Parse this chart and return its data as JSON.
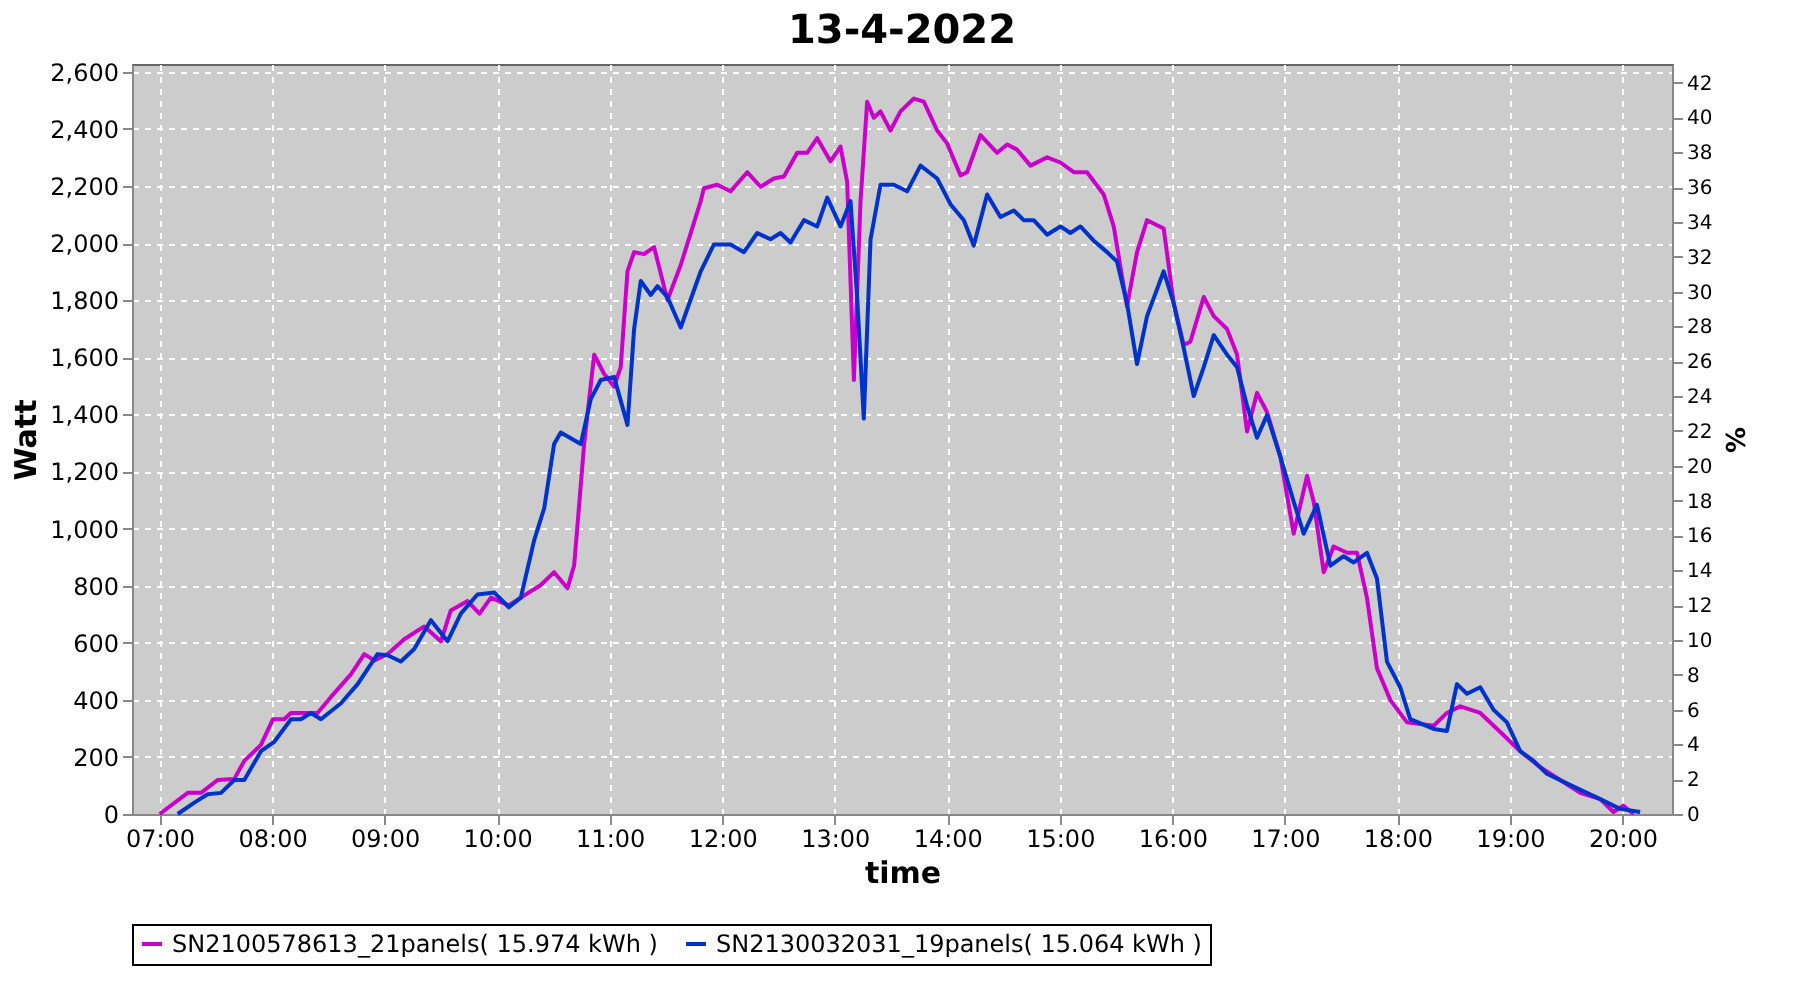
{
  "chart_data": {
    "type": "line",
    "title": "13-4-2022",
    "xlabel": "time",
    "ylabel": "Watt",
    "y2label": "%",
    "xlim": [
      6.755,
      20.44
    ],
    "xticks": [
      {
        "value": 7,
        "label": "07:00"
      },
      {
        "value": 8,
        "label": "08:00"
      },
      {
        "value": 9,
        "label": "09:00"
      },
      {
        "value": 10,
        "label": "10:00"
      },
      {
        "value": 11,
        "label": "11:00"
      },
      {
        "value": 12,
        "label": "12:00"
      },
      {
        "value": 13,
        "label": "13:00"
      },
      {
        "value": 14,
        "label": "14:00"
      },
      {
        "value": 15,
        "label": "15:00"
      },
      {
        "value": 16,
        "label": "16:00"
      },
      {
        "value": 17,
        "label": "17:00"
      },
      {
        "value": 18,
        "label": "18:00"
      },
      {
        "value": 19,
        "label": "19:00"
      },
      {
        "value": 20,
        "label": "20:00"
      }
    ],
    "ylim": [
      0,
      2627
    ],
    "yticks": [
      0,
      200,
      400,
      600,
      800,
      {
        "value": 1000,
        "label": "1,000"
      },
      {
        "value": 1200,
        "label": "1,200"
      },
      {
        "value": 1400,
        "label": "1,400"
      },
      {
        "value": 1600,
        "label": "1,600"
      },
      {
        "value": 1800,
        "label": "1,800"
      },
      {
        "value": 2000,
        "label": "2,000"
      },
      {
        "value": 2200,
        "label": "2,200"
      },
      {
        "value": 2400,
        "label": "2,400"
      },
      {
        "value": 2600,
        "label": "2,600"
      }
    ],
    "y2lim": [
      0,
      43.07
    ],
    "y2ticks": [
      0,
      2,
      4,
      6,
      8,
      10,
      12,
      14,
      16,
      18,
      20,
      22,
      24,
      26,
      28,
      30,
      32,
      34,
      36,
      38,
      40,
      42
    ],
    "grid": true,
    "legend": "bottom",
    "marker": "none",
    "line_style": "solid",
    "series": [
      {
        "name": "SN2100578613_21panels( 15.974 kWh )",
        "color": "#cc00cc",
        "x": [
          7.001,
          7.25,
          7.368,
          7.516,
          7.664,
          7.753,
          7.901,
          8.008,
          8.108,
          8.167,
          8.316,
          8.404,
          8.523,
          8.7,
          8.819,
          8.908,
          9.026,
          9.174,
          9.352,
          9.5,
          9.588,
          9.737,
          9.843,
          9.944,
          10.104,
          10.21,
          10.388,
          10.506,
          10.625,
          10.684,
          10.773,
          10.862,
          10.95,
          11.039,
          11.098,
          11.158,
          11.217,
          11.306,
          11.394,
          11.513,
          11.631,
          11.809,
          11.837,
          11.956,
          12.074,
          12.222,
          12.341,
          12.459,
          12.548,
          12.666,
          12.755,
          12.844,
          12.962,
          13.051,
          13.11,
          13.17,
          13.229,
          13.288,
          13.347,
          13.406,
          13.495,
          13.584,
          13.703,
          13.791,
          13.91,
          13.998,
          14.117,
          14.176,
          14.295,
          14.443,
          14.532,
          14.62,
          14.739,
          14.887,
          15.005,
          15.124,
          15.242,
          15.39,
          15.479,
          15.597,
          15.686,
          15.775,
          15.923,
          16.012,
          16.101,
          16.16,
          16.279,
          16.368,
          16.486,
          16.575,
          16.664,
          16.752,
          16.841,
          16.96,
          17.078,
          17.197,
          17.256,
          17.345,
          17.433,
          17.552,
          17.641,
          17.729,
          17.818,
          17.937,
          18.085,
          18.322,
          18.44,
          18.558,
          18.736,
          18.914,
          19.091,
          19.269,
          19.447,
          19.624,
          19.802,
          19.92,
          20.009,
          20.098
        ],
        "values": [
          0,
          74,
          74,
          119,
          123,
          186,
          242,
          332,
          332,
          354,
          354,
          354,
          410,
          489,
          560,
          538,
          560,
          612,
          657,
          605,
          713,
          746,
          702,
          758,
          731,
          758,
          802,
          847,
          791,
          870,
          1296,
          1609,
          1542,
          1497,
          1565,
          1901,
          1968,
          1961,
          1986,
          1800,
          1923,
          2147,
          2192,
          2204,
          2181,
          2248,
          2197,
          2226,
          2233,
          2316,
          2316,
          2367,
          2286,
          2338,
          2215,
          1520,
          2147,
          2495,
          2439,
          2461,
          2394,
          2461,
          2506,
          2495,
          2394,
          2349,
          2237,
          2248,
          2378,
          2316,
          2345,
          2327,
          2271,
          2300,
          2282,
          2248,
          2248,
          2170,
          2058,
          1778,
          1968,
          2080,
          2051,
          1789,
          1643,
          1654,
          1811,
          1744,
          1699,
          1609,
          1340,
          1475,
          1408,
          1251,
          982,
          1184,
          1094,
          847,
          937,
          915,
          915,
          758,
          511,
          399,
          321,
          309,
          354,
          377,
          354,
          287,
          220,
          164,
          119,
          74,
          52,
          7,
          29,
          0
        ]
      },
      {
        "name": "SN2130032031_19panels( 15.064 kWh )",
        "color": "#0033cc",
        "x": [
          7.161,
          7.309,
          7.427,
          7.546,
          7.664,
          7.753,
          7.901,
          8.019,
          8.168,
          8.256,
          8.345,
          8.434,
          8.612,
          8.76,
          8.937,
          9.026,
          9.144,
          9.263,
          9.411,
          9.559,
          9.677,
          9.825,
          9.973,
          10.104,
          10.21,
          10.329,
          10.418,
          10.506,
          10.565,
          10.743,
          10.832,
          10.921,
          11.039,
          11.158,
          11.217,
          11.276,
          11.365,
          11.424,
          11.513,
          11.631,
          11.809,
          11.926,
          12.074,
          12.193,
          12.311,
          12.429,
          12.518,
          12.607,
          12.726,
          12.844,
          12.933,
          13.051,
          13.14,
          13.199,
          13.258,
          13.318,
          13.406,
          13.525,
          13.643,
          13.762,
          13.91,
          14.028,
          14.147,
          14.235,
          14.354,
          14.472,
          14.591,
          14.679,
          14.768,
          14.887,
          15.005,
          15.094,
          15.183,
          15.301,
          15.42,
          15.508,
          15.597,
          15.686,
          15.775,
          15.923,
          16.012,
          16.101,
          16.19,
          16.279,
          16.368,
          16.486,
          16.575,
          16.664,
          16.752,
          16.841,
          16.96,
          17.078,
          17.167,
          17.285,
          17.404,
          17.522,
          17.611,
          17.729,
          17.818,
          17.907,
          18.025,
          18.114,
          18.322,
          18.44,
          18.529,
          18.618,
          18.736,
          18.854,
          18.973,
          19.091,
          19.21,
          19.328,
          19.565,
          19.802,
          19.979,
          20.157
        ],
        "values": [
          0,
          40,
          69,
          74,
          119,
          119,
          220,
          253,
          332,
          332,
          354,
          332,
          388,
          455,
          560,
          556,
          534,
          578,
          679,
          605,
          702,
          769,
          776,
          724,
          758,
          959,
          1071,
          1296,
          1336,
          1296,
          1453,
          1520,
          1531,
          1363,
          1699,
          1867,
          1818,
          1849,
          1811,
          1704,
          1901,
          1995,
          1995,
          1968,
          2035,
          2013,
          2035,
          2002,
          2080,
          2058,
          2159,
          2058,
          2147,
          1811,
          1385,
          2013,
          2204,
          2204,
          2181,
          2271,
          2226,
          2136,
          2080,
          1991,
          2170,
          2091,
          2114,
          2080,
          2080,
          2029,
          2058,
          2035,
          2058,
          2008,
          1968,
          1935,
          1789,
          1576,
          1744,
          1901,
          1789,
          1632,
          1464,
          1565,
          1677,
          1609,
          1565,
          1430,
          1318,
          1397,
          1251,
          1094,
          982,
          1083,
          870,
          903,
          881,
          915,
          825,
          534,
          444,
          332,
          298,
          291,
          455,
          421,
          444,
          365,
          321,
          220,
          186,
          141,
          96,
          52,
          18,
          7
        ]
      }
    ]
  }
}
